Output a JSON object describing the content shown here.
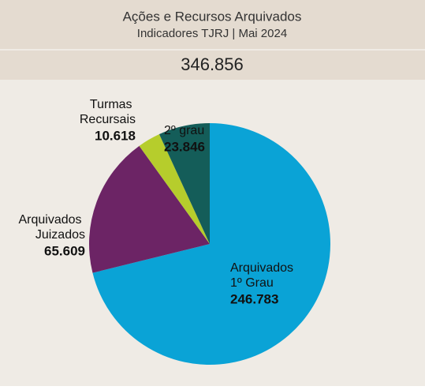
{
  "chart_data": {
    "type": "pie",
    "title": "Ações e Recursos Arquivados",
    "subtitle": "Indicadores TJRJ | Mai 2024",
    "total": "346.856",
    "categories": [
      "Arquivados 1º Grau",
      "Arquivados Juizados",
      "Turmas Recursais",
      "2º grau"
    ],
    "values": [
      246783,
      65609,
      10618,
      23846
    ],
    "value_labels": [
      "246.783",
      "65.609",
      "10.618",
      "23.846"
    ],
    "colors": [
      "#0aa3d6",
      "#6c2465",
      "#b6cd2c",
      "#145d59"
    ]
  }
}
